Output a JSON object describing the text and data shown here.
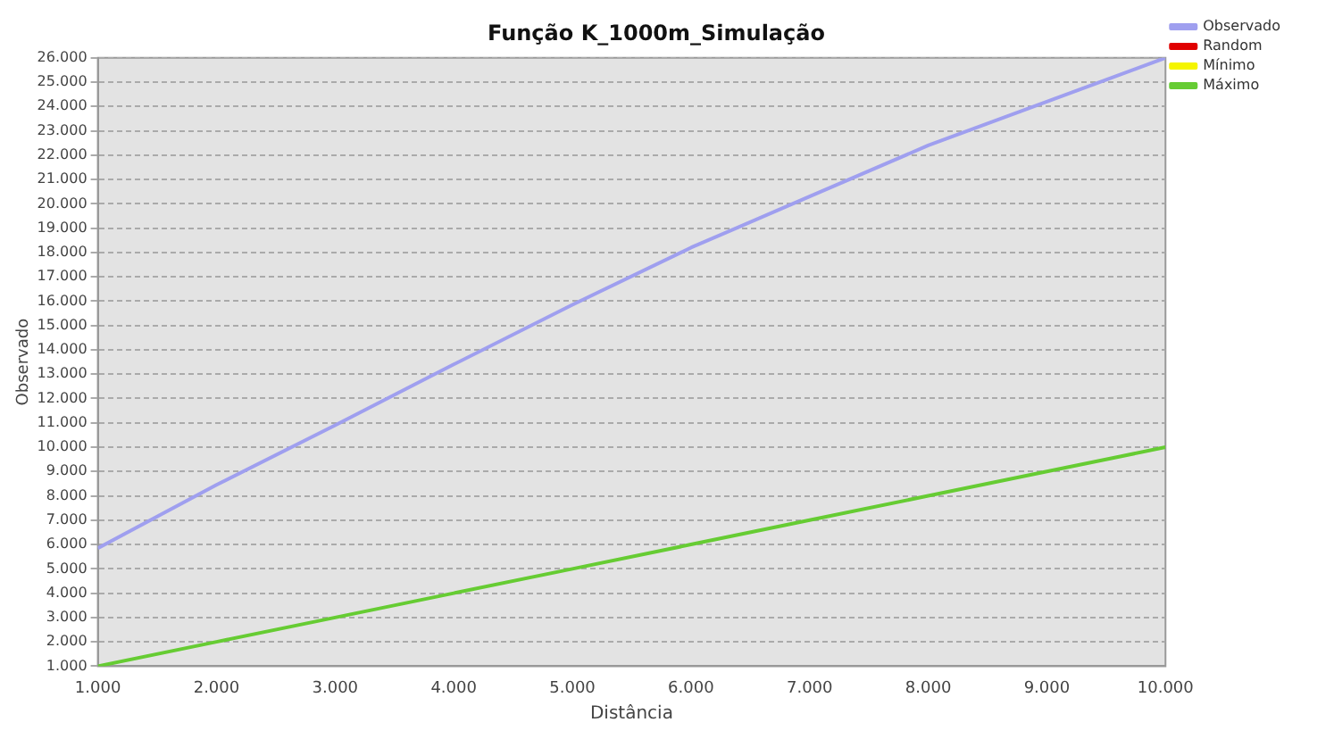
{
  "chart_data": {
    "type": "line",
    "title": "Função K_1000m_Simulação",
    "xlabel": "Distância",
    "ylabel": "Observado",
    "x": [
      1000,
      2000,
      3000,
      4000,
      5000,
      6000,
      7000,
      8000,
      9000,
      10000
    ],
    "series": [
      {
        "name": "Observado",
        "color": "#9f9fef",
        "values": [
          5850,
          8450,
          10900,
          13400,
          15850,
          18200,
          20300,
          22400,
          24200,
          26000
        ]
      },
      {
        "name": "Random",
        "color": "#e00000",
        "values": [
          null,
          null,
          null,
          null,
          null,
          null,
          null,
          null,
          null,
          null
        ]
      },
      {
        "name": "Mínimo",
        "color": "#f5f500",
        "values": [
          null,
          null,
          null,
          null,
          null,
          null,
          null,
          null,
          null,
          null
        ]
      },
      {
        "name": "Máximo",
        "color": "#66cc33",
        "values": [
          1000,
          2000,
          3000,
          4000,
          5000,
          6000,
          7000,
          8000,
          9000,
          10000
        ]
      }
    ],
    "xlim": [
      1000,
      10000
    ],
    "xticks": [
      {
        "value": 1000,
        "label": "1.000"
      },
      {
        "value": 2000,
        "label": "2.000"
      },
      {
        "value": 3000,
        "label": "3.000"
      },
      {
        "value": 4000,
        "label": "4.000"
      },
      {
        "value": 5000,
        "label": "5.000"
      },
      {
        "value": 6000,
        "label": "6.000"
      },
      {
        "value": 7000,
        "label": "7.000"
      },
      {
        "value": 8000,
        "label": "8.000"
      },
      {
        "value": 9000,
        "label": "9.000"
      },
      {
        "value": 10000,
        "label": "10.000"
      }
    ],
    "ylim": [
      1000,
      26000
    ],
    "yticks": [
      {
        "value": 1000,
        "label": "1.000"
      },
      {
        "value": 2000,
        "label": "2.000"
      },
      {
        "value": 3000,
        "label": "3.000"
      },
      {
        "value": 4000,
        "label": "4.000"
      },
      {
        "value": 5000,
        "label": "5.000"
      },
      {
        "value": 6000,
        "label": "6.000"
      },
      {
        "value": 7000,
        "label": "7.000"
      },
      {
        "value": 8000,
        "label": "8.000"
      },
      {
        "value": 9000,
        "label": "9.000"
      },
      {
        "value": 10000,
        "label": "10.000"
      },
      {
        "value": 11000,
        "label": "11.000"
      },
      {
        "value": 12000,
        "label": "12.000"
      },
      {
        "value": 13000,
        "label": "13.000"
      },
      {
        "value": 14000,
        "label": "14.000"
      },
      {
        "value": 15000,
        "label": "15.000"
      },
      {
        "value": 16000,
        "label": "16.000"
      },
      {
        "value": 17000,
        "label": "17.000"
      },
      {
        "value": 18000,
        "label": "18.000"
      },
      {
        "value": 19000,
        "label": "19.000"
      },
      {
        "value": 20000,
        "label": "20.000"
      },
      {
        "value": 21000,
        "label": "21.000"
      },
      {
        "value": 22000,
        "label": "22.000"
      },
      {
        "value": 23000,
        "label": "23.000"
      },
      {
        "value": 24000,
        "label": "24.000"
      },
      {
        "value": 25000,
        "label": "25.000"
      },
      {
        "value": 26000,
        "label": "26.000"
      }
    ],
    "grid": "y",
    "legend": "top right",
    "marker": "none",
    "line_style": "solid"
  }
}
